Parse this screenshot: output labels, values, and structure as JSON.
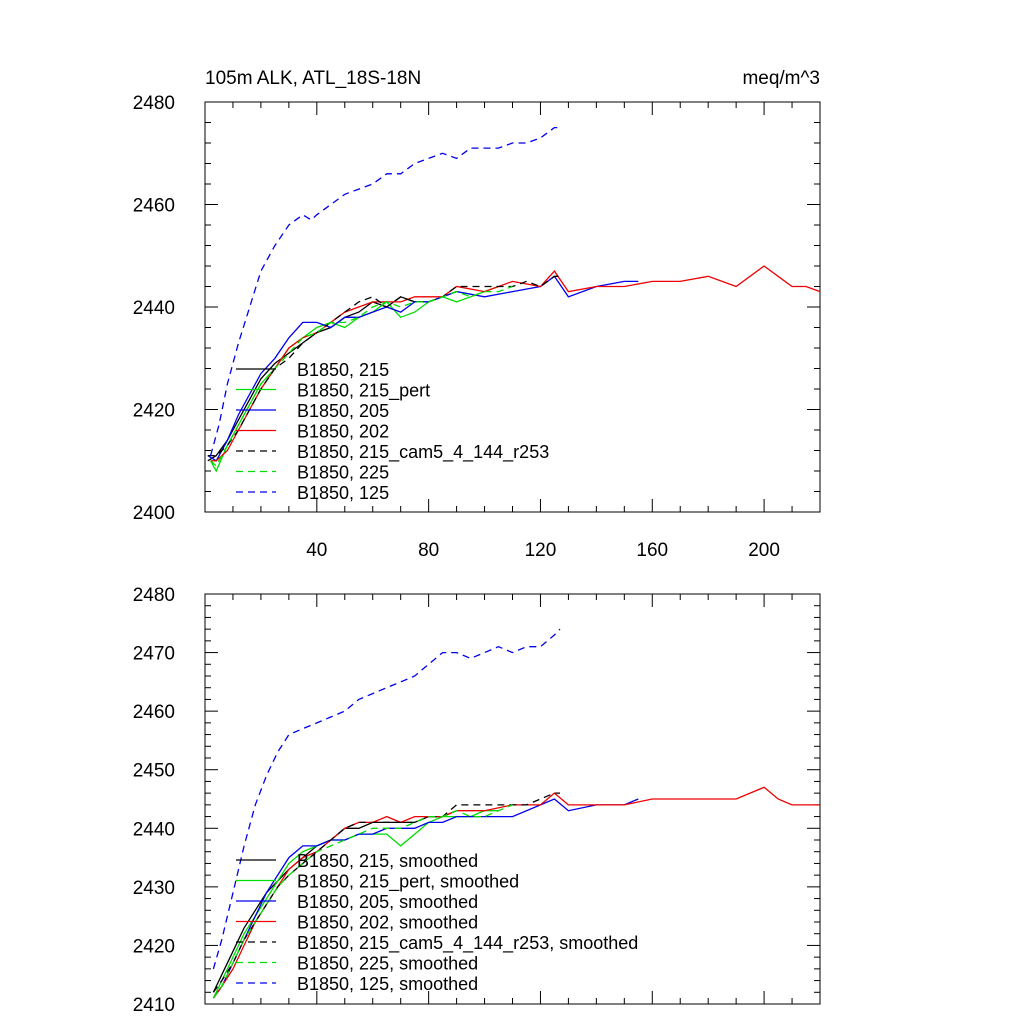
{
  "chart_data": [
    {
      "type": "line",
      "title": "105m ALK, ATL_18S-18N",
      "units": "meq/m^3",
      "xlim": [
        0,
        220
      ],
      "ylim": [
        2400,
        2480
      ],
      "xticks": [
        40,
        80,
        120,
        160,
        200
      ],
      "xtick_labels": [
        "40",
        "80",
        "120",
        "160",
        "200"
      ],
      "yticks": [
        2400,
        2420,
        2440,
        2460,
        2480
      ],
      "ytick_labels": [
        "2400",
        "2420",
        "2440",
        "2460",
        "2480"
      ],
      "legend_position": "lower-left",
      "series": [
        {
          "name": "B1850, 215",
          "color": "#000000",
          "dash": "solid",
          "x": [
            1,
            4,
            8,
            12,
            16,
            20,
            25,
            30,
            35,
            40,
            45,
            50,
            55,
            60,
            65,
            70,
            75,
            80,
            85,
            90
          ],
          "y": [
            2410,
            2411,
            2414,
            2418,
            2422,
            2426,
            2429,
            2431,
            2433,
            2435,
            2436,
            2438,
            2439,
            2441,
            2440,
            2442,
            2441,
            2441,
            2442,
            2443
          ]
        },
        {
          "name": "B1850, 215_pert",
          "color": "#00dd00",
          "dash": "solid",
          "x": [
            2,
            4,
            8,
            12,
            16,
            20,
            25,
            30,
            35,
            40,
            45,
            50,
            55,
            60,
            65,
            70,
            75,
            80,
            85,
            90,
            95,
            100,
            105
          ],
          "y": [
            2410,
            2408,
            2413,
            2417,
            2421,
            2425,
            2428,
            2432,
            2434,
            2436,
            2437,
            2436,
            2438,
            2439,
            2441,
            2438,
            2439,
            2441,
            2442,
            2441,
            2442,
            2443,
            2444
          ]
        },
        {
          "name": "B1850, 205",
          "color": "#0000ee",
          "dash": "solid",
          "x": [
            1,
            4,
            8,
            12,
            16,
            20,
            25,
            30,
            35,
            40,
            45,
            50,
            55,
            60,
            65,
            70,
            75,
            80,
            85,
            90,
            100,
            110,
            120,
            125,
            130,
            140,
            150,
            155
          ],
          "y": [
            2411,
            2410,
            2414,
            2419,
            2423,
            2427,
            2430,
            2434,
            2437,
            2437,
            2436,
            2438,
            2438,
            2439,
            2440,
            2439,
            2441,
            2441,
            2442,
            2443,
            2442,
            2443,
            2444,
            2446,
            2442,
            2444,
            2445,
            2445
          ]
        },
        {
          "name": "B1850, 202",
          "color": "#ee0000",
          "dash": "solid",
          "x": [
            2,
            4,
            8,
            12,
            16,
            20,
            25,
            30,
            35,
            40,
            45,
            50,
            55,
            60,
            65,
            70,
            75,
            80,
            85,
            90,
            100,
            110,
            120,
            125,
            130,
            140,
            150,
            160,
            170,
            180,
            190,
            200,
            205,
            210,
            215,
            220
          ],
          "y": [
            2410,
            2410,
            2412,
            2416,
            2420,
            2424,
            2428,
            2432,
            2434,
            2435,
            2437,
            2439,
            2440,
            2441,
            2441,
            2441,
            2442,
            2442,
            2442,
            2444,
            2443,
            2445,
            2444,
            2447,
            2443,
            2444,
            2444,
            2445,
            2445,
            2446,
            2444,
            2448,
            2446,
            2444,
            2444,
            2443
          ]
        },
        {
          "name": "B1850, 215_cam5_4_144_r253",
          "color": "#000000",
          "dash": "dashed",
          "x": [
            1,
            4,
            8,
            12,
            16,
            20,
            25,
            30,
            35,
            40,
            45,
            50,
            55,
            60,
            65,
            70,
            75,
            80,
            85,
            90,
            95,
            100,
            105,
            110,
            115,
            120,
            125,
            127
          ],
          "y": [
            2411,
            2411,
            2413,
            2416,
            2420,
            2424,
            2428,
            2430,
            2433,
            2435,
            2437,
            2439,
            2441,
            2442,
            2440,
            2442,
            2441,
            2441,
            2442,
            2444,
            2444,
            2444,
            2444,
            2444,
            2445,
            2444,
            2446,
            2446
          ]
        },
        {
          "name": "B1850, 225",
          "color": "#00dd00",
          "dash": "dashed",
          "x": [
            2,
            4,
            8,
            12,
            16,
            20,
            25,
            30,
            35,
            40,
            45,
            50,
            55,
            60,
            65,
            70,
            75,
            80,
            85,
            90,
            95,
            100,
            105,
            110
          ],
          "y": [
            2410,
            2409,
            2413,
            2417,
            2421,
            2425,
            2428,
            2431,
            2434,
            2435,
            2437,
            2437,
            2438,
            2440,
            2441,
            2440,
            2441,
            2441,
            2442,
            2443,
            2442,
            2443,
            2443,
            2444
          ]
        },
        {
          "name": "B1850, 125",
          "color": "#0000ee",
          "dash": "dashed",
          "x": [
            2,
            5,
            8,
            12,
            16,
            20,
            25,
            30,
            35,
            38,
            40,
            45,
            50,
            55,
            60,
            65,
            70,
            75,
            80,
            85,
            90,
            95,
            100,
            105,
            110,
            115,
            120,
            125,
            127
          ],
          "y": [
            2411,
            2417,
            2425,
            2433,
            2440,
            2447,
            2452,
            2456,
            2458,
            2457,
            2458,
            2460,
            2462,
            2463,
            2464,
            2466,
            2466,
            2468,
            2469,
            2470,
            2469,
            2471,
            2471,
            2471,
            2472,
            2472,
            2473,
            2475,
            2475
          ]
        }
      ]
    },
    {
      "type": "line",
      "title": "",
      "xlim": [
        0,
        220
      ],
      "ylim": [
        2410,
        2480
      ],
      "xticks": [
        40,
        80,
        120,
        160,
        200
      ],
      "xtick_labels": [
        "",
        "",
        "",
        "",
        ""
      ],
      "yticks": [
        2410,
        2420,
        2430,
        2440,
        2450,
        2460,
        2470,
        2480
      ],
      "ytick_labels": [
        "2410",
        "2420",
        "2430",
        "2440",
        "2450",
        "2460",
        "2470",
        "2480"
      ],
      "legend_position": "lower-left",
      "series": [
        {
          "name": "B1850, 215, smoothed",
          "color": "#000000",
          "dash": "solid",
          "x": [
            3,
            6,
            10,
            14,
            18,
            22,
            26,
            30,
            35,
            40,
            45,
            50,
            55,
            60,
            65,
            70,
            75,
            80,
            85,
            90
          ],
          "y": [
            2412,
            2415,
            2419,
            2423,
            2426,
            2429,
            2431,
            2433,
            2435,
            2437,
            2438,
            2440,
            2440,
            2441,
            2441,
            2441,
            2441,
            2442,
            2442,
            2443
          ]
        },
        {
          "name": "B1850, 215_pert, smoothed",
          "color": "#00dd00",
          "dash": "solid",
          "x": [
            3,
            6,
            10,
            14,
            18,
            22,
            26,
            30,
            35,
            40,
            45,
            50,
            55,
            60,
            65,
            70,
            75,
            80,
            85,
            90,
            95,
            100,
            105
          ],
          "y": [
            2411,
            2414,
            2418,
            2422,
            2425,
            2428,
            2431,
            2434,
            2436,
            2437,
            2438,
            2438,
            2439,
            2439,
            2439,
            2437,
            2439,
            2441,
            2442,
            2442,
            2442,
            2443,
            2443
          ]
        },
        {
          "name": "B1850, 205, smoothed",
          "color": "#0000ee",
          "dash": "solid",
          "x": [
            3,
            6,
            10,
            14,
            18,
            22,
            26,
            30,
            35,
            40,
            45,
            50,
            55,
            60,
            65,
            70,
            75,
            80,
            85,
            90,
            100,
            110,
            120,
            125,
            130,
            140,
            150,
            155
          ],
          "y": [
            2411,
            2413,
            2417,
            2421,
            2425,
            2429,
            2432,
            2435,
            2437,
            2437,
            2438,
            2438,
            2439,
            2439,
            2440,
            2440,
            2440,
            2441,
            2441,
            2442,
            2442,
            2442,
            2444,
            2445,
            2443,
            2444,
            2444,
            2445
          ]
        },
        {
          "name": "B1850, 202, smoothed",
          "color": "#ee0000",
          "dash": "solid",
          "x": [
            3,
            6,
            10,
            14,
            18,
            22,
            26,
            30,
            35,
            40,
            45,
            50,
            55,
            60,
            65,
            70,
            75,
            80,
            85,
            90,
            100,
            110,
            120,
            125,
            130,
            140,
            150,
            160,
            170,
            180,
            190,
            200,
            205,
            210,
            215,
            220
          ],
          "y": [
            2411,
            2413,
            2416,
            2420,
            2424,
            2427,
            2430,
            2433,
            2435,
            2436,
            2438,
            2440,
            2441,
            2441,
            2442,
            2441,
            2442,
            2442,
            2442,
            2443,
            2443,
            2444,
            2444,
            2446,
            2444,
            2444,
            2444,
            2445,
            2445,
            2445,
            2445,
            2447,
            2445,
            2444,
            2444,
            2444
          ]
        },
        {
          "name": "B1850, 215_cam5_4_144_r253, smoothed",
          "color": "#000000",
          "dash": "dashed",
          "x": [
            3,
            6,
            10,
            14,
            18,
            22,
            26,
            30,
            35,
            40,
            45,
            50,
            55,
            60,
            65,
            70,
            75,
            80,
            85,
            90,
            95,
            100,
            105,
            110,
            115,
            120,
            125,
            127
          ],
          "y": [
            2412,
            2414,
            2417,
            2421,
            2424,
            2427,
            2430,
            2432,
            2434,
            2436,
            2438,
            2440,
            2441,
            2441,
            2441,
            2441,
            2441,
            2442,
            2442,
            2444,
            2444,
            2444,
            2444,
            2444,
            2444,
            2445,
            2446,
            2446
          ]
        },
        {
          "name": "B1850, 225, smoothed",
          "color": "#00dd00",
          "dash": "dashed",
          "x": [
            3,
            6,
            10,
            14,
            18,
            22,
            26,
            30,
            35,
            40,
            45,
            50,
            55,
            60,
            65,
            70,
            75,
            80,
            85,
            90,
            95,
            100,
            105,
            110
          ],
          "y": [
            2411,
            2413,
            2417,
            2421,
            2424,
            2427,
            2430,
            2432,
            2434,
            2436,
            2437,
            2438,
            2439,
            2440,
            2440,
            2440,
            2441,
            2442,
            2442,
            2443,
            2442,
            2442,
            2443,
            2444
          ]
        },
        {
          "name": "B1850, 125, smoothed",
          "color": "#0000ee",
          "dash": "dashed",
          "x": [
            3,
            6,
            10,
            14,
            18,
            22,
            26,
            30,
            35,
            40,
            45,
            50,
            55,
            60,
            65,
            70,
            75,
            80,
            85,
            90,
            95,
            100,
            105,
            110,
            115,
            120,
            125,
            127
          ],
          "y": [
            2416,
            2421,
            2429,
            2437,
            2444,
            2449,
            2453,
            2456,
            2457,
            2458,
            2459,
            2460,
            2462,
            2463,
            2464,
            2465,
            2466,
            2468,
            2470,
            2470,
            2469,
            2470,
            2471,
            2470,
            2471,
            2471,
            2473,
            2474
          ]
        }
      ]
    }
  ]
}
